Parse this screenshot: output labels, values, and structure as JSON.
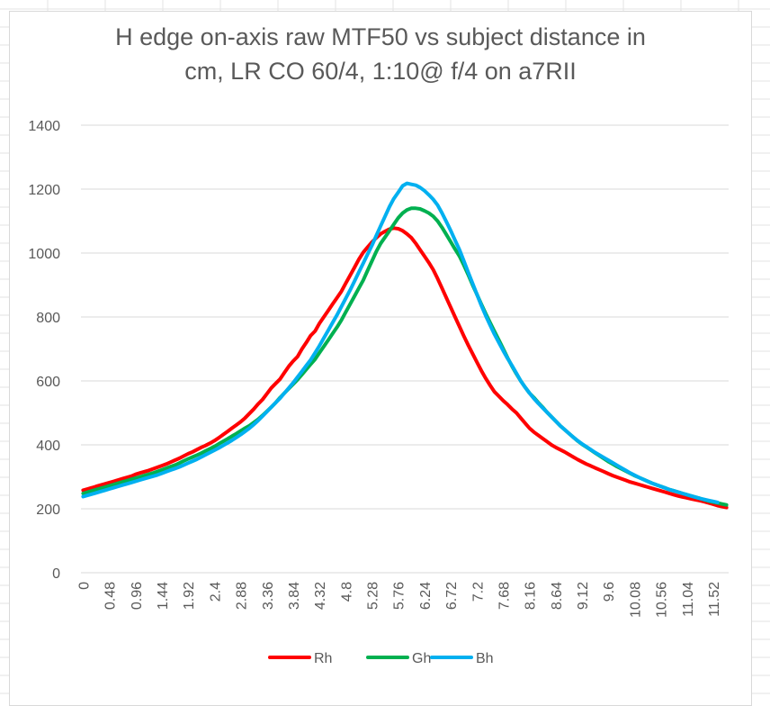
{
  "chart_data": {
    "type": "line",
    "title_lines": [
      "H edge on-axis raw MTF50 vs subject distance in",
      "cm, LR CO 60/4, 1:10@ f/4 on a7RII"
    ],
    "ylim": [
      0,
      1400
    ],
    "y_ticks": [
      "0",
      "200",
      "400",
      "600",
      "800",
      "1000",
      "1200",
      "1400"
    ],
    "x_start": 0,
    "x_step": 0.08,
    "x_tick_labels": [
      "0",
      "0.48",
      "0.96",
      "1.44",
      "1.92",
      "2.4",
      "2.88",
      "3.36",
      "3.84",
      "4.32",
      "4.8",
      "5.28",
      "5.76",
      "6.24",
      "6.72",
      "7.2",
      "7.68",
      "8.16",
      "8.64",
      "9.12",
      "9.6",
      "10.08",
      "10.56",
      "11.04",
      "11.52"
    ],
    "x_tick_every": 6,
    "grid": "horizontal",
    "legend_position": "bottom",
    "series": [
      {
        "name": "Rh",
        "color": "#ff0000",
        "values": [
          258,
          262,
          266,
          270,
          274,
          278,
          282,
          286,
          290,
          294,
          298,
          302,
          308,
          312,
          316,
          320,
          325,
          330,
          335,
          340,
          346,
          352,
          358,
          365,
          372,
          378,
          385,
          392,
          398,
          405,
          413,
          422,
          432,
          442,
          452,
          462,
          472,
          484,
          498,
          512,
          528,
          542,
          560,
          578,
          592,
          606,
          626,
          646,
          662,
          676,
          700,
          720,
          742,
          756,
          780,
          800,
          820,
          840,
          860,
          880,
          905,
          930,
          955,
          980,
          1002,
          1018,
          1034,
          1048,
          1060,
          1068,
          1075,
          1078,
          1076,
          1070,
          1060,
          1048,
          1030,
          1010,
          990,
          970,
          948,
          920,
          890,
          860,
          830,
          800,
          770,
          740,
          712,
          685,
          658,
          632,
          608,
          586,
          566,
          552,
          538,
          526,
          512,
          500,
          484,
          468,
          452,
          440,
          430,
          420,
          410,
          400,
          392,
          385,
          378,
          370,
          362,
          354,
          347,
          340,
          334,
          328,
          322,
          316,
          310,
          304,
          299,
          294,
          289,
          284,
          280,
          276,
          272,
          268,
          264,
          260,
          256,
          252,
          248,
          244,
          240,
          237,
          234,
          231,
          228,
          225,
          222,
          218,
          214,
          210,
          207,
          204
        ]
      },
      {
        "name": "Gh",
        "color": "#00b050",
        "values": [
          248,
          252,
          256,
          260,
          264,
          268,
          272,
          276,
          280,
          284,
          288,
          292,
          296,
          300,
          304,
          308,
          312,
          317,
          322,
          327,
          332,
          337,
          343,
          350,
          356,
          362,
          368,
          374,
          381,
          388,
          395,
          403,
          411,
          419,
          427,
          435,
          444,
          452,
          460,
          470,
          480,
          492,
          505,
          518,
          532,
          548,
          562,
          576,
          590,
          604,
          620,
          636,
          652,
          668,
          688,
          708,
          728,
          748,
          768,
          790,
          815,
          840,
          865,
          890,
          915,
          945,
          975,
          1005,
          1030,
          1050,
          1070,
          1090,
          1110,
          1125,
          1135,
          1140,
          1140,
          1138,
          1132,
          1125,
          1115,
          1100,
          1080,
          1058,
          1035,
          1012,
          990,
          962,
          932,
          900,
          870,
          840,
          810,
          782,
          755,
          728,
          700,
          672,
          646,
          622,
          600,
          580,
          562,
          548,
          532,
          518,
          502,
          488,
          474,
          460,
          448,
          436,
          424,
          412,
          402,
          393,
          384,
          375,
          366,
          357,
          348,
          340,
          332,
          325,
          318,
          311,
          304,
          298,
          292,
          286,
          280,
          275,
          270,
          265,
          260,
          256,
          252,
          248,
          244,
          240,
          236,
          232,
          228,
          224,
          221,
          218,
          215,
          212
        ]
      },
      {
        "name": "Bh",
        "color": "#00b0f0",
        "values": [
          238,
          242,
          246,
          250,
          254,
          258,
          262,
          266,
          270,
          274,
          278,
          282,
          286,
          290,
          294,
          298,
          302,
          306,
          311,
          316,
          321,
          326,
          331,
          337,
          343,
          349,
          355,
          362,
          369,
          376,
          383,
          390,
          398,
          406,
          414,
          423,
          432,
          442,
          452,
          464,
          476,
          490,
          504,
          518,
          532,
          546,
          562,
          578,
          594,
          612,
          630,
          648,
          666,
          688,
          710,
          734,
          758,
          782,
          806,
          832,
          858,
          884,
          912,
          940,
          968,
          996,
          1024,
          1055,
          1085,
          1115,
          1145,
          1170,
          1190,
          1210,
          1218,
          1215,
          1212,
          1205,
          1195,
          1182,
          1168,
          1150,
          1125,
          1098,
          1070,
          1040,
          1010,
          975,
          940,
          905,
          870,
          836,
          804,
          774,
          746,
          720,
          694,
          670,
          648,
          624,
          600,
          580,
          562,
          545,
          530,
          516,
          502,
          488,
          474,
          460,
          448,
          436,
          424,
          413,
          403,
          394,
          385,
          376,
          368,
          360,
          352,
          344,
          336,
          328,
          320,
          312,
          305,
          298,
          292,
          286,
          280,
          275,
          270,
          265,
          260,
          256,
          252,
          248,
          244,
          240,
          236,
          232,
          229,
          226,
          223,
          220
        ]
      }
    ]
  }
}
